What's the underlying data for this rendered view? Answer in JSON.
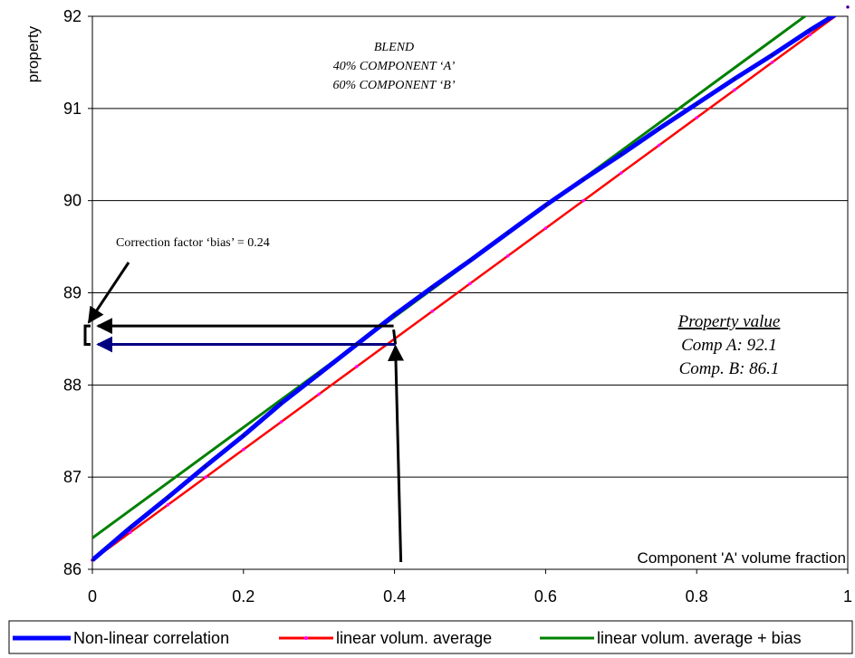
{
  "chart_data": {
    "type": "line",
    "title": "",
    "xlabel": "Component 'A' volume fraction",
    "ylabel": "property",
    "xlim": [
      0,
      1
    ],
    "ylim": [
      86,
      92
    ],
    "x_ticks": [
      0,
      0.2,
      0.4,
      0.6,
      0.8,
      1
    ],
    "x_tick_labels": [
      "0",
      "0.2",
      "0.4",
      "0.6",
      "0.8",
      "1"
    ],
    "y_ticks": [
      86,
      87,
      88,
      89,
      90,
      91,
      92
    ],
    "y_tick_labels": [
      "86",
      "87",
      "88",
      "89",
      "90",
      "91",
      "92"
    ],
    "grid": "horizontal",
    "legend_position": "bottom",
    "series": [
      {
        "name": "Non-linear correlation",
        "color": "#0000ff",
        "x": [
          0,
          0.05,
          0.1,
          0.15,
          0.2,
          0.25,
          0.3,
          0.35,
          0.4,
          0.45,
          0.5,
          0.55,
          0.6,
          0.65,
          0.7,
          0.75,
          0.8,
          0.85,
          0.9,
          0.95,
          1.0
        ],
        "y": [
          86.1,
          86.45,
          86.78,
          87.12,
          87.45,
          87.8,
          88.12,
          88.44,
          88.76,
          89.06,
          89.35,
          89.65,
          89.95,
          90.23,
          90.5,
          90.78,
          91.05,
          91.32,
          91.58,
          91.85,
          92.1
        ]
      },
      {
        "name": "linear volum. average",
        "color": "#ff0000",
        "x": [
          0,
          0.05,
          0.1,
          0.15,
          0.2,
          0.25,
          0.3,
          0.35,
          0.4,
          0.45,
          0.5,
          0.55,
          0.6,
          0.65,
          0.7,
          0.75,
          0.8,
          0.85,
          0.9,
          0.95,
          1.0
        ],
        "y": [
          86.1,
          86.4,
          86.7,
          87.0,
          87.3,
          87.6,
          87.9,
          88.2,
          88.5,
          88.8,
          89.1,
          89.4,
          89.7,
          90.0,
          90.3,
          90.6,
          90.9,
          91.2,
          91.5,
          91.8,
          92.1
        ]
      },
      {
        "name": "linear volum. average + bias",
        "color": "#008000",
        "x": [
          0,
          0.05,
          0.1,
          0.15,
          0.2,
          0.25,
          0.3,
          0.35,
          0.4,
          0.45,
          0.5,
          0.55,
          0.6,
          0.65,
          0.7,
          0.75,
          0.8,
          0.85,
          0.9,
          0.95,
          1.0
        ],
        "y": [
          86.34,
          86.64,
          86.94,
          87.24,
          87.54,
          87.84,
          88.14,
          88.44,
          88.74,
          89.04,
          89.34,
          89.64,
          89.94,
          90.24,
          90.54,
          90.84,
          91.14,
          91.44,
          91.74,
          92.04,
          92.34
        ]
      }
    ],
    "annotations": {
      "blend": [
        "BLEND",
        "40% COMPONENT ‘A’",
        "60% COMPONENT ‘B’"
      ],
      "correction": "Correction factor ‘bias’ = 0.24",
      "property_title": "Property value",
      "comp_a": "Comp A: 92.1",
      "comp_b": "Comp. B: 86.1"
    },
    "arrows": {
      "vertical_x": 0.4,
      "blue_arrow_y": 88.44,
      "black_arrow_y": 88.64
    }
  }
}
